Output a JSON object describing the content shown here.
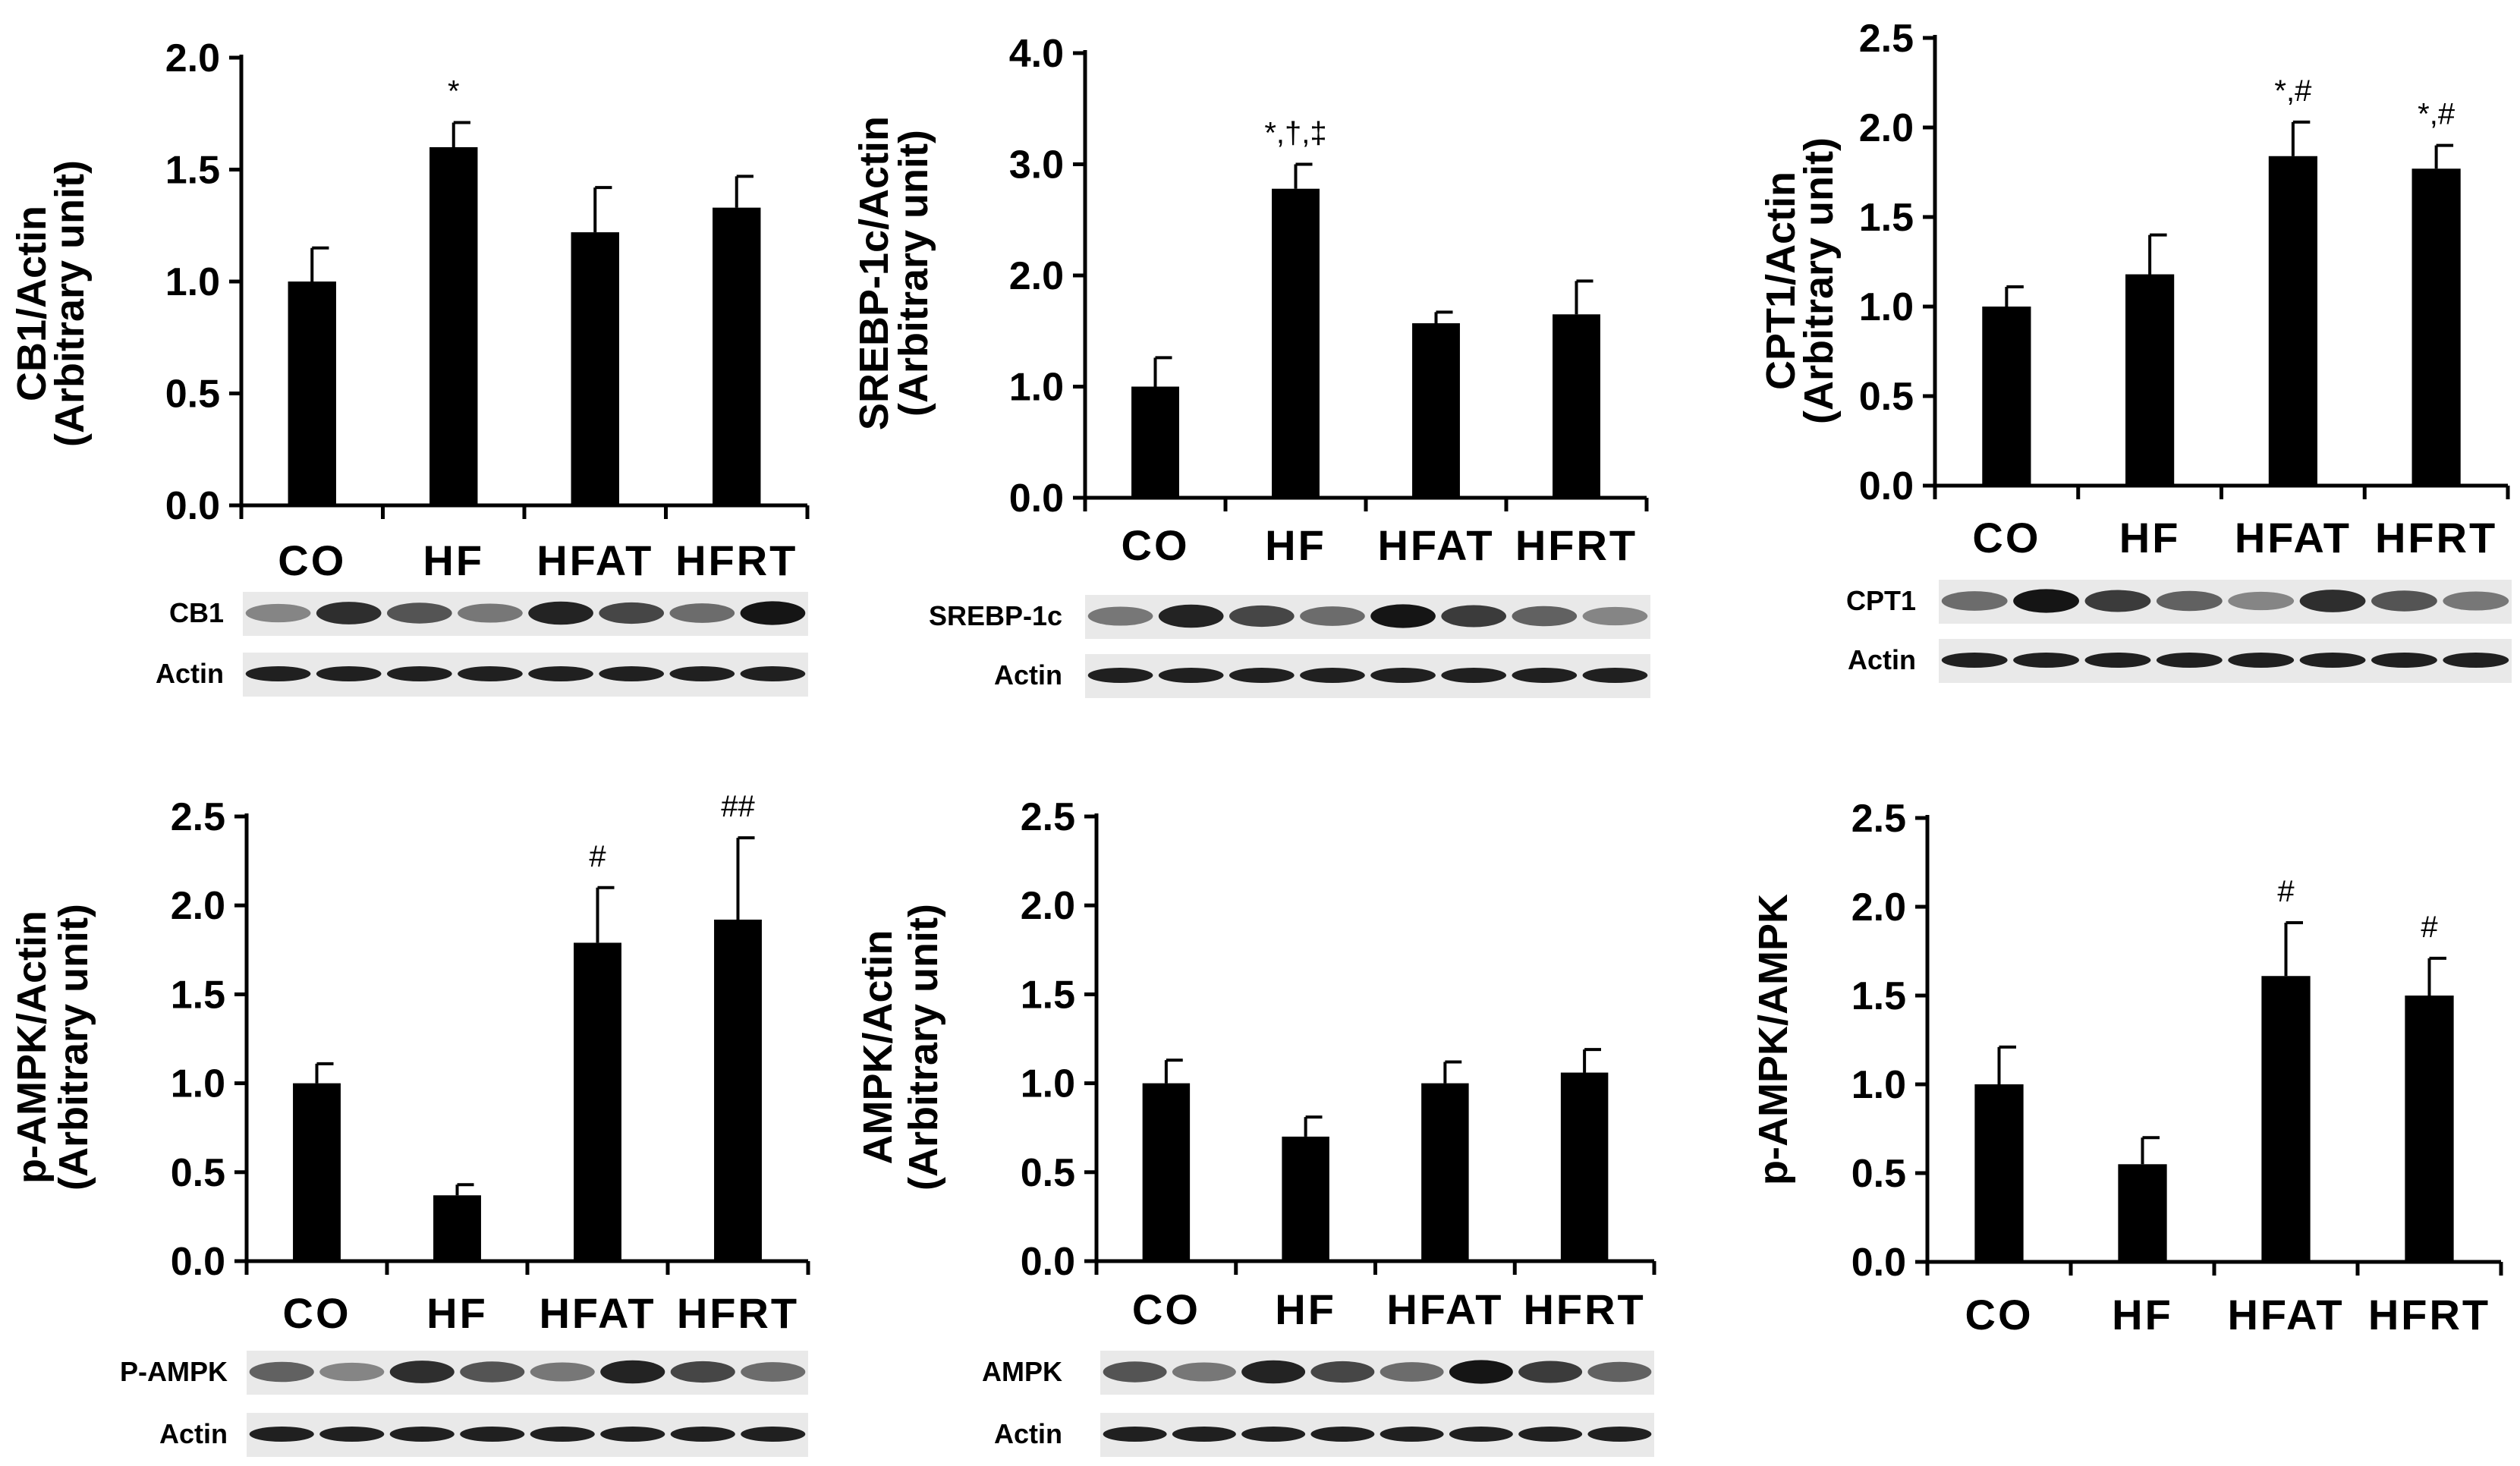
{
  "chart_data": [
    {
      "type": "bar",
      "panel": "CB1",
      "categories": [
        "CO",
        "HF",
        "HFAT",
        "HFRT"
      ],
      "values": [
        1.0,
        1.6,
        1.22,
        1.33
      ],
      "errors": [
        0.15,
        0.11,
        0.2,
        0.14
      ],
      "annotations": [
        "",
        "*",
        "",
        ""
      ],
      "ylabel": [
        "CB1/Actin",
        "(Arbitrary unit)"
      ],
      "ylim": [
        0,
        2.0
      ],
      "yticks": [
        "0.0",
        "0.5",
        "1.0",
        "1.5",
        "2.0"
      ],
      "blot_labels": [
        "CB1",
        "Actin"
      ]
    },
    {
      "type": "bar",
      "panel": "SREBP-1c",
      "categories": [
        "CO",
        "HF",
        "HFAT",
        "HFRT"
      ],
      "values": [
        1.0,
        2.78,
        1.57,
        1.65
      ],
      "errors": [
        0.26,
        0.22,
        0.1,
        0.3
      ],
      "annotations": [
        "",
        "*,†,‡",
        "",
        ""
      ],
      "ylabel": [
        "SREBP-1c/Actin",
        "(Arbitrary unit)"
      ],
      "ylim": [
        0,
        4.0
      ],
      "yticks": [
        "0.0",
        "1.0",
        "2.0",
        "3.0",
        "4.0"
      ],
      "blot_labels": [
        "SREBP-1c",
        "Actin"
      ]
    },
    {
      "type": "bar",
      "panel": "CPT1",
      "categories": [
        "CO",
        "HF",
        "HFAT",
        "HFRT"
      ],
      "values": [
        1.0,
        1.18,
        1.84,
        1.77
      ],
      "errors": [
        0.11,
        0.22,
        0.19,
        0.13
      ],
      "annotations": [
        "",
        "",
        "*,#",
        "*,#"
      ],
      "ylabel": [
        "CPT1/Actin",
        "(Arbitrary unit)"
      ],
      "ylim": [
        0,
        2.5
      ],
      "yticks": [
        "0.0",
        "0.5",
        "1.0",
        "1.5",
        "2.0",
        "2.5"
      ],
      "blot_labels": [
        "CPT1",
        "Actin"
      ]
    },
    {
      "type": "bar",
      "panel": "p-AMPK",
      "categories": [
        "CO",
        "HF",
        "HFAT",
        "HFRT"
      ],
      "values": [
        1.0,
        0.37,
        1.79,
        1.92
      ],
      "errors": [
        0.11,
        0.06,
        0.31,
        0.46
      ],
      "annotations": [
        "",
        "",
        "#",
        "##"
      ],
      "ylabel": [
        "p-AMPK/Actin",
        "(Arbitrary unit)"
      ],
      "ylim": [
        0,
        2.5
      ],
      "yticks": [
        "0.0",
        "0.5",
        "1.0",
        "1.5",
        "2.0",
        "2.5"
      ],
      "blot_labels": [
        "P-AMPK",
        "Actin"
      ]
    },
    {
      "type": "bar",
      "panel": "AMPK",
      "categories": [
        "CO",
        "HF",
        "HFAT",
        "HFRT"
      ],
      "values": [
        1.0,
        0.7,
        1.0,
        1.06
      ],
      "errors": [
        0.13,
        0.11,
        0.12,
        0.13
      ],
      "annotations": [
        "",
        "",
        "",
        ""
      ],
      "ylabel": [
        "AMPK/Actin",
        "(Arbitrary unit)"
      ],
      "ylim": [
        0,
        2.5
      ],
      "yticks": [
        "0.0",
        "0.5",
        "1.0",
        "1.5",
        "2.0",
        "2.5"
      ],
      "blot_labels": [
        "AMPK",
        "Actin"
      ]
    },
    {
      "type": "bar",
      "panel": "p-AMPK/AMPK",
      "categories": [
        "CO",
        "HF",
        "HFAT",
        "HFRT"
      ],
      "values": [
        1.0,
        0.55,
        1.61,
        1.5
      ],
      "errors": [
        0.21,
        0.15,
        0.3,
        0.21
      ],
      "annotations": [
        "",
        "",
        "#",
        "#"
      ],
      "ylabel": [
        "p-AMPK/AMPK"
      ],
      "ylim": [
        0,
        2.5
      ],
      "yticks": [
        "0.0",
        "0.5",
        "1.0",
        "1.5",
        "2.0",
        "2.5"
      ],
      "blot_labels": []
    }
  ]
}
